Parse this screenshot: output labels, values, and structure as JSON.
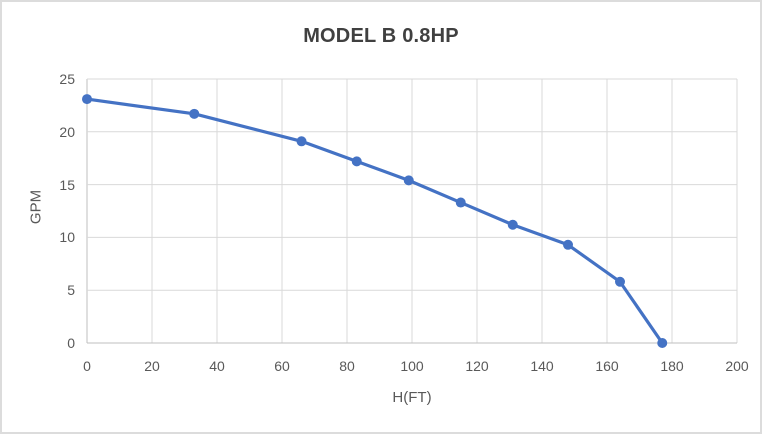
{
  "chart_data": {
    "type": "line",
    "title": "MODEL B 0.8HP",
    "xlabel": "H(FT)",
    "ylabel": "GPM",
    "xlim": [
      0,
      200
    ],
    "ylim": [
      0,
      25
    ],
    "x_ticks": [
      0,
      20,
      40,
      60,
      80,
      100,
      120,
      140,
      160,
      180,
      200
    ],
    "y_ticks": [
      0,
      5,
      10,
      15,
      20,
      25
    ],
    "grid": true,
    "legend": "none",
    "series": [
      {
        "name": "MODEL B 0.8HP",
        "x": [
          0,
          33,
          66,
          83,
          99,
          115,
          131,
          148,
          164,
          177
        ],
        "y": [
          23.1,
          21.7,
          19.1,
          17.2,
          15.4,
          13.3,
          11.2,
          9.3,
          5.8,
          0
        ]
      }
    ],
    "colors": {
      "line": "#4472C4",
      "marker": "#4472C4",
      "gridline": "#D9D9D9",
      "axis_line": "#BFBFBF",
      "title_text": "#404040",
      "tick_text": "#595959",
      "frame_border": "#DCDCDC",
      "background": "#FFFFFF"
    }
  }
}
